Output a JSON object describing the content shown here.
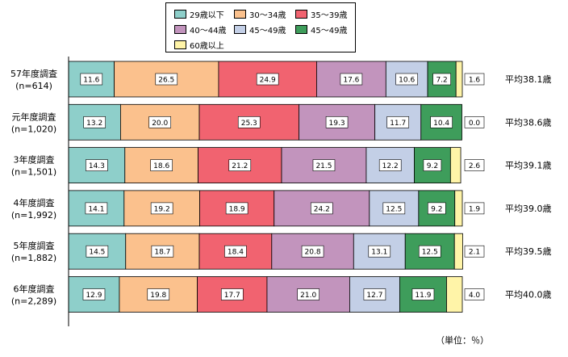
{
  "legend": {
    "items": [
      {
        "label": "29歳以下",
        "color": "#8ecfca"
      },
      {
        "label": "30～34歳",
        "color": "#fbc18d"
      },
      {
        "label": "35～39歳",
        "color": "#f16370"
      },
      {
        "label": "40～44歳",
        "color": "#c294bd"
      },
      {
        "label": "45～49歳",
        "color": "#c3cfe6"
      },
      {
        "label": "45～49歳",
        "color": "#3e9d5b"
      },
      {
        "label": "60歳以上",
        "color": "#fff4a8"
      }
    ]
  },
  "unit_note": "（単位：％）",
  "chart_data": {
    "type": "bar",
    "orientation": "horizontal",
    "stacked": true,
    "xlim": [
      0,
      100
    ],
    "categories": [
      {
        "title": "57年度調査",
        "n": "(n=614)",
        "avg": "平均38.1歳"
      },
      {
        "title": "元年度調査",
        "n": "(n=1,020)",
        "avg": "平均38.6歳"
      },
      {
        "title": "3年度調査",
        "n": "(n=1,501)",
        "avg": "平均39.1歳"
      },
      {
        "title": "4年度調査",
        "n": "(n=1,992)",
        "avg": "平均39.0歳"
      },
      {
        "title": "5年度調査",
        "n": "(n=1,882)",
        "avg": "平均39.5歳"
      },
      {
        "title": "6年度調査",
        "n": "(n=2,289)",
        "avg": "平均40.0歳"
      }
    ],
    "series": [
      {
        "name": "29歳以下",
        "values": [
          11.6,
          13.2,
          14.3,
          14.1,
          14.5,
          12.9
        ]
      },
      {
        "name": "30～34歳",
        "values": [
          26.5,
          20.0,
          18.6,
          19.2,
          18.7,
          19.8
        ]
      },
      {
        "name": "35～39歳",
        "values": [
          24.9,
          25.3,
          21.2,
          18.9,
          18.4,
          17.7
        ]
      },
      {
        "name": "40～44歳",
        "values": [
          17.6,
          19.3,
          21.5,
          24.2,
          20.8,
          21.0
        ]
      },
      {
        "name": "45～49歳",
        "values": [
          10.6,
          11.7,
          12.2,
          12.5,
          13.1,
          12.7
        ]
      },
      {
        "name": "45～49歳",
        "values": [
          7.2,
          10.4,
          9.2,
          9.2,
          12.5,
          11.9
        ]
      },
      {
        "name": "60歳以上",
        "values": [
          1.6,
          0.0,
          2.6,
          1.9,
          2.1,
          4.0
        ]
      }
    ],
    "value_labels": [
      [
        "11.6",
        "26.5",
        "24.9",
        "17.6",
        "10.6",
        "7.2",
        "1.6"
      ],
      [
        "13.2",
        "20.0",
        "25.3",
        "19.3",
        "11.7",
        "10.4",
        "0.0"
      ],
      [
        "14.3",
        "18.6",
        "21.2",
        "21.5",
        "12.2",
        "9.2",
        "2.6"
      ],
      [
        "14.1",
        "19.2",
        "18.9",
        "24.2",
        "12.5",
        "9.2",
        "1.9"
      ],
      [
        "14.5",
        "18.7",
        "18.4",
        "20.8",
        "13.1",
        "12.5",
        "2.1"
      ],
      [
        "12.9",
        "19.8",
        "17.7",
        "21.0",
        "12.7",
        "11.9",
        "4.0"
      ]
    ]
  }
}
